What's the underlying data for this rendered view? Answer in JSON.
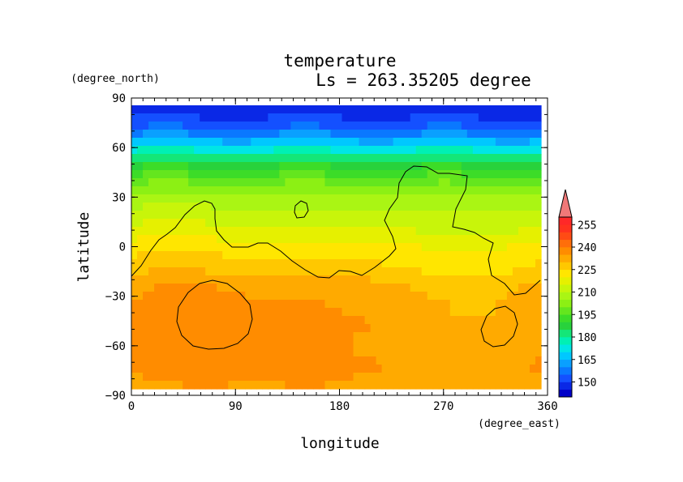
{
  "chart_data": {
    "type": "heatmap",
    "title": "temperature",
    "subtitle": "Ls = 263.35205 degree",
    "xlabel": "longitude",
    "ylabel": "latitude",
    "x_units": "(degree_east)",
    "y_units": "(degree_north)",
    "xlim": [
      0,
      360
    ],
    "ylim": [
      -90,
      90
    ],
    "x_ticks": [
      0,
      90,
      180,
      270,
      360
    ],
    "y_ticks": [
      90,
      60,
      30,
      0,
      -30,
      -60,
      -90
    ],
    "x_tick_labels": [
      "0",
      "90",
      "180",
      "270",
      "360"
    ],
    "y_tick_labels": [
      "90",
      "60",
      "30",
      "0",
      "−30",
      "−60",
      "−90"
    ],
    "colorbar": {
      "levels": [
        140,
        145,
        150,
        155,
        160,
        165,
        170,
        175,
        180,
        185,
        190,
        195,
        200,
        205,
        210,
        215,
        220,
        225,
        230,
        235,
        240,
        245,
        250,
        255,
        260
      ],
      "tick_labels": [
        "150",
        "165",
        "180",
        "195",
        "210",
        "225",
        "240",
        "255"
      ],
      "tick_values": [
        150,
        165,
        180,
        195,
        210,
        225,
        240,
        255
      ],
      "colors": [
        "#0000c8",
        "#0a28e6",
        "#1450ff",
        "#0a78ff",
        "#0aa0ff",
        "#00c8ff",
        "#00e6e6",
        "#00f0b4",
        "#14e678",
        "#28d23c",
        "#3cdc28",
        "#64e61e",
        "#8cf014",
        "#aaf514",
        "#c8f50a",
        "#e6f000",
        "#ffe600",
        "#ffc800",
        "#ffaa00",
        "#ff8c00",
        "#ff6e0a",
        "#ff4b14",
        "#ff321e",
        "#ff2828"
      ],
      "overflow_color": "#f07878"
    },
    "field": {
      "latitudes": [
        85,
        80,
        75,
        70,
        65,
        60,
        55,
        50,
        45,
        40,
        35,
        30,
        25,
        20,
        15,
        10,
        5,
        0,
        -5,
        -10,
        -15,
        -20,
        -25,
        -30,
        -35,
        -40,
        -45,
        -50,
        -55,
        -60,
        -65,
        -70,
        -75,
        -80,
        -85
      ],
      "zonal_mean": [
        147,
        149,
        152,
        157,
        164,
        172,
        181,
        188,
        193,
        198,
        202,
        206,
        209,
        212,
        214,
        216,
        219,
        222,
        224,
        226,
        228,
        231,
        233,
        234,
        235,
        235,
        236,
        236,
        235,
        235,
        235,
        236,
        236,
        234,
        233
      ]
    }
  }
}
